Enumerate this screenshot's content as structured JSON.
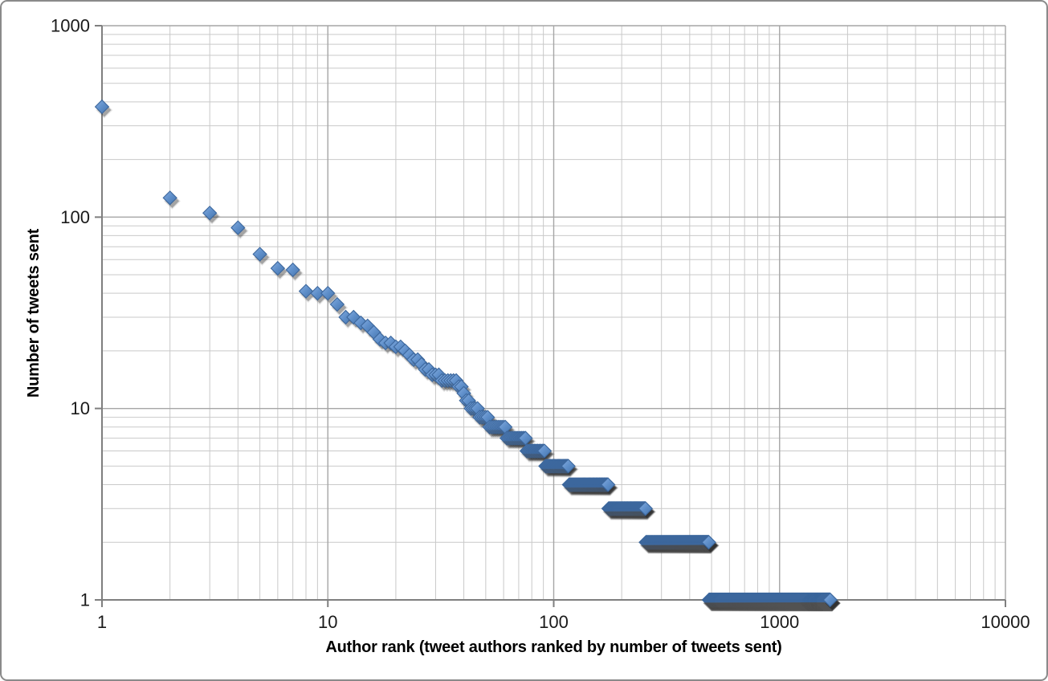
{
  "chart_data": {
    "type": "scatter",
    "title": "",
    "xlabel": "Author rank (tweet authors ranked by number of tweets sent)",
    "ylabel": "Number of tweets sent",
    "x_scale": "log",
    "y_scale": "log",
    "xlim": [
      1,
      10000
    ],
    "ylim": [
      1,
      1000
    ],
    "x_ticks": [
      "1",
      "10",
      "100",
      "1000",
      "10000"
    ],
    "y_ticks": [
      "1",
      "10",
      "100",
      "1000"
    ],
    "grid": "major and minor log gridlines on both axes",
    "legend": "none",
    "marker": "blue diamond with drop shadow",
    "runs_format": "[first_author_rank, last_author_rank, tweets_sent] - every integer rank in the range has this value",
    "runs": [
      [
        1,
        1,
        377
      ],
      [
        2,
        2,
        126
      ],
      [
        3,
        3,
        105
      ],
      [
        4,
        4,
        88
      ],
      [
        5,
        5,
        64
      ],
      [
        6,
        6,
        54
      ],
      [
        7,
        7,
        53
      ],
      [
        8,
        8,
        41
      ],
      [
        9,
        10,
        40
      ],
      [
        11,
        11,
        35
      ],
      [
        12,
        13,
        30
      ],
      [
        14,
        14,
        28
      ],
      [
        15,
        15,
        27
      ],
      [
        16,
        16,
        25
      ],
      [
        17,
        17,
        23
      ],
      [
        18,
        19,
        22
      ],
      [
        20,
        21,
        21
      ],
      [
        22,
        22,
        20
      ],
      [
        23,
        23,
        19
      ],
      [
        24,
        25,
        18
      ],
      [
        26,
        26,
        17
      ],
      [
        27,
        28,
        16
      ],
      [
        29,
        31,
        15
      ],
      [
        32,
        37,
        14
      ],
      [
        38,
        39,
        13
      ],
      [
        40,
        40,
        12
      ],
      [
        41,
        42,
        11
      ],
      [
        43,
        46,
        10
      ],
      [
        47,
        51,
        9
      ],
      [
        52,
        61,
        8
      ],
      [
        62,
        75,
        7
      ],
      [
        76,
        91,
        6
      ],
      [
        92,
        116,
        5
      ],
      [
        117,
        174,
        4
      ],
      [
        175,
        255,
        3
      ],
      [
        256,
        486,
        2
      ],
      [
        487,
        1675,
        1
      ]
    ]
  },
  "style": {
    "background": "#ffffff",
    "frame_border": "#8a8a8a",
    "axis_color": "#7f7f7f",
    "major_grid": "#a6a6a6",
    "minor_grid": "#c9c9c9",
    "tick_label_color": "#1a1a1a",
    "title_color": "#000000",
    "marker_light": "#85ADE0",
    "marker_mid": "#5E8EC9",
    "marker_dark": "#4574AC",
    "marker_border": "#3C679D",
    "marker_shadow_inner": "rgba(40,40,40,0.34)",
    "marker_shadow_outer": "rgba(90,90,90,0.16)"
  }
}
